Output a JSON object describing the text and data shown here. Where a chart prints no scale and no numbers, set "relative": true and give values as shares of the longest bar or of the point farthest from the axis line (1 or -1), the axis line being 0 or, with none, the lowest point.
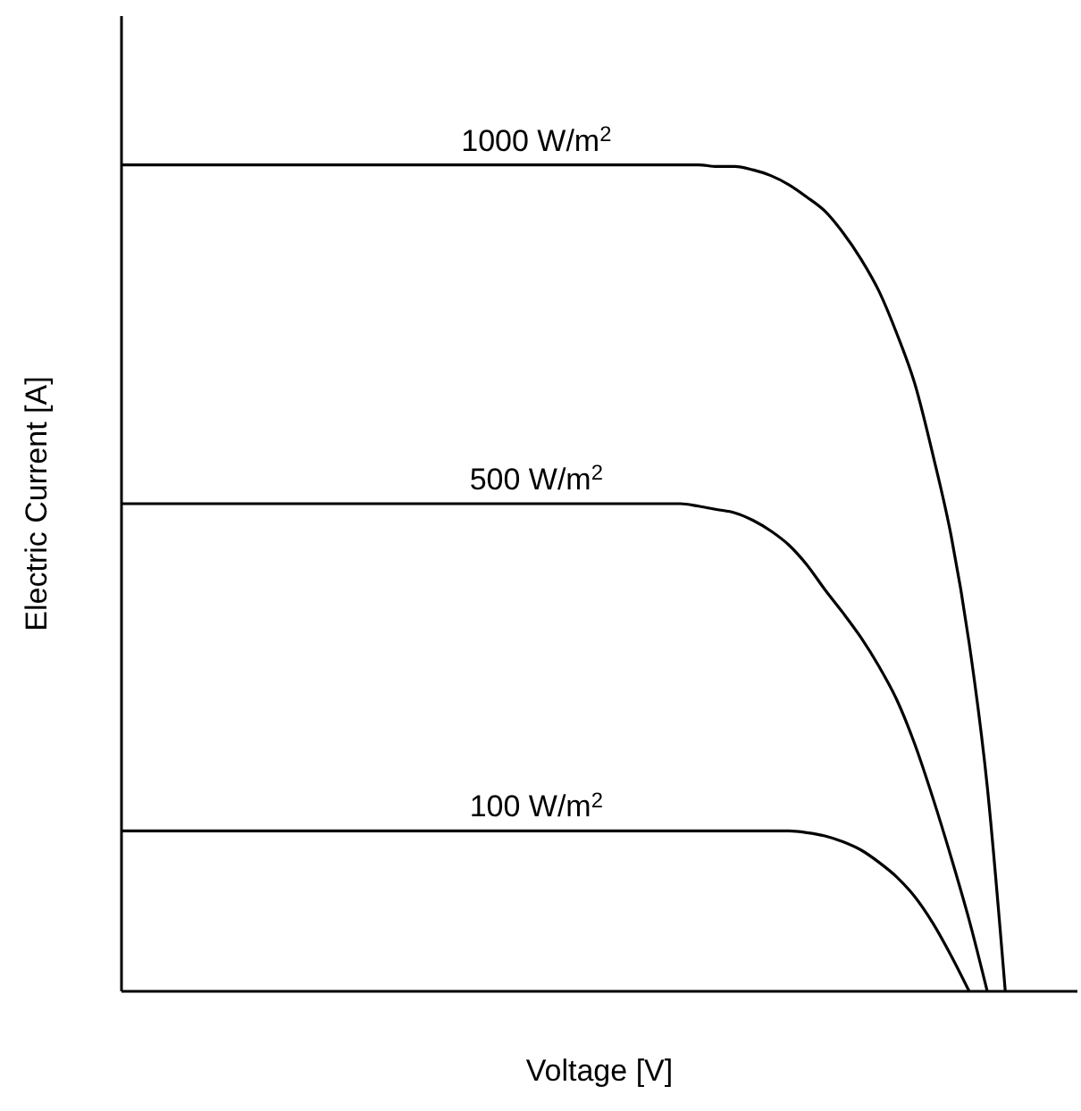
{
  "chart_data": {
    "type": "line",
    "relative": true,
    "xlabel": "Voltage [V]",
    "ylabel": "Electric Current [A]",
    "marker": "none",
    "line_style": "solid",
    "categories": [
      null,
      null,
      null,
      null,
      null,
      null,
      null,
      null,
      null,
      null,
      null,
      null,
      null,
      null,
      null,
      null,
      null,
      null,
      null,
      null,
      null,
      null,
      null,
      null,
      null,
      null,
      null,
      null,
      null,
      null,
      null,
      null,
      null,
      null,
      null,
      null,
      null,
      null,
      null,
      null,
      null,
      null,
      null,
      null,
      null,
      null,
      null,
      null,
      null,
      null,
      null,
      null,
      null,
      null
    ],
    "series": [
      {
        "name": "1000 W/m$^{2}$",
        "color": "#000000",
        "values": [
          1,
          1,
          1,
          1,
          1,
          1,
          1,
          1,
          1,
          1,
          1,
          1,
          1,
          1,
          1,
          1,
          1,
          1,
          1,
          1,
          1,
          1,
          1,
          1,
          1,
          1,
          1,
          1,
          1,
          1,
          1,
          1,
          1,
          0.998,
          0.998,
          0.994,
          0.987,
          0.976,
          0.961,
          0.944,
          0.918,
          0.886,
          0.847,
          0.795,
          0.734,
          0.648,
          0.551,
          0.421,
          0.248,
          0,
          null,
          null,
          null,
          null
        ]
      },
      {
        "name": "500 W/m$^{2}$",
        "color": "#000000",
        "values": [
          0.59,
          0.59,
          0.59,
          0.59,
          0.59,
          0.59,
          0.59,
          0.59,
          0.59,
          0.59,
          0.59,
          0.59,
          0.59,
          0.59,
          0.59,
          0.59,
          0.59,
          0.59,
          0.59,
          0.59,
          0.59,
          0.59,
          0.59,
          0.59,
          0.59,
          0.59,
          0.59,
          0.59,
          0.59,
          0.59,
          0.59,
          0.59,
          0.587,
          0.583,
          0.579,
          0.57,
          0.557,
          0.54,
          0.516,
          0.486,
          0.458,
          0.428,
          0.393,
          0.352,
          0.298,
          0.233,
          0.162,
          0.086,
          0,
          null,
          null,
          null,
          null,
          null
        ]
      },
      {
        "name": "100 W/m$^{2}$",
        "color": "#000000",
        "values": [
          0.194,
          0.194,
          0.194,
          0.194,
          0.194,
          0.194,
          0.194,
          0.194,
          0.194,
          0.194,
          0.194,
          0.194,
          0.194,
          0.194,
          0.194,
          0.194,
          0.194,
          0.194,
          0.194,
          0.194,
          0.194,
          0.194,
          0.194,
          0.194,
          0.194,
          0.194,
          0.194,
          0.194,
          0.194,
          0.194,
          0.194,
          0.194,
          0.194,
          0.194,
          0.194,
          0.194,
          0.194,
          0.194,
          0.192,
          0.188,
          0.181,
          0.171,
          0.156,
          0.138,
          0.114,
          0.082,
          0.043,
          0,
          null,
          null,
          null,
          null,
          null,
          null
        ]
      }
    ]
  }
}
